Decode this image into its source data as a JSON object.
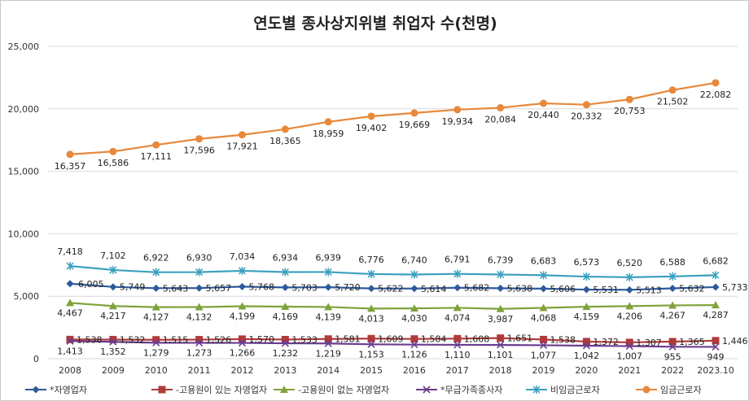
{
  "chart_data": {
    "type": "line",
    "title": "연도별 종사상지위별 취업자 수(천명)",
    "xlabel": "",
    "ylabel": "",
    "ylim": [
      0,
      25000
    ],
    "yticks": [
      "0",
      "5,000",
      "10,000",
      "15,000",
      "20,000",
      "25,000"
    ],
    "categories": [
      "2008",
      "2009",
      "2010",
      "2011",
      "2012",
      "2013",
      "2014",
      "2015",
      "2016",
      "2017",
      "2018",
      "2019",
      "2020",
      "2021",
      "2022",
      "2023.10"
    ],
    "grid": true,
    "legend_position": "bottom",
    "series": [
      {
        "name": "*자영업자",
        "color": "#2e5a9c",
        "marker": "diamond",
        "values": [
          6005,
          5749,
          5643,
          5657,
          5768,
          5703,
          5720,
          5622,
          5614,
          5682,
          5638,
          5606,
          5531,
          5513,
          5632,
          5733
        ],
        "labels": [
          "6,005",
          "5,749",
          "5,643",
          "5,657",
          "5,768",
          "5,703",
          "5,720",
          "5,622",
          "5,614",
          "5,682",
          "5,638",
          "5,606",
          "5,531",
          "5,513",
          "5,632",
          "5,733"
        ]
      },
      {
        "name": "-고용원이 있는 자영업자",
        "color": "#b03a3a",
        "marker": "square",
        "values": [
          1538,
          1532,
          1515,
          1526,
          1570,
          1533,
          1581,
          1609,
          1584,
          1608,
          1651,
          1538,
          1372,
          1307,
          1365,
          1446
        ],
        "labels": [
          "1,538",
          "1,532",
          "1,515",
          "1,526",
          "1,570",
          "1,533",
          "1,581",
          "1,609",
          "1,584",
          "1,608",
          "1,651",
          "1,538",
          "1,372",
          "1,307",
          "1,365",
          "1,446"
        ]
      },
      {
        "name": "-고용원이 없는 자영업자",
        "color": "#7fa33a",
        "marker": "triangle",
        "values": [
          4467,
          4217,
          4127,
          4132,
          4199,
          4169,
          4139,
          4013,
          4030,
          4074,
          3987,
          4068,
          4159,
          4206,
          4267,
          4287
        ],
        "labels": [
          "4,467",
          "4,217",
          "4,127",
          "4,132",
          "4,199",
          "4,169",
          "4,139",
          "4,013",
          "4,030",
          "4,074",
          "3,987",
          "4,068",
          "4,159",
          "4,206",
          "4,267",
          "4,287"
        ]
      },
      {
        "name": "*무급가족종사자",
        "color": "#6a3d8f",
        "marker": "x",
        "values": [
          1413,
          1352,
          1279,
          1273,
          1266,
          1232,
          1219,
          1153,
          1126,
          1110,
          1101,
          1077,
          1042,
          1007,
          955,
          949
        ],
        "labels": [
          "1,413",
          "1,352",
          "1,279",
          "1,273",
          "1,266",
          "1,232",
          "1,219",
          "1,153",
          "1,126",
          "1,110",
          "1,101",
          "1,077",
          "1,042",
          "1,007",
          "955",
          "949"
        ]
      },
      {
        "name": "비임금근로자",
        "color": "#3aa0bf",
        "marker": "star",
        "values": [
          7418,
          7102,
          6922,
          6930,
          7034,
          6934,
          6939,
          6776,
          6740,
          6791,
          6739,
          6683,
          6573,
          6520,
          6588,
          6682
        ],
        "labels": [
          "7,418",
          "7,102",
          "6,922",
          "6,930",
          "7,034",
          "6,934",
          "6,939",
          "6,776",
          "6,740",
          "6,791",
          "6,739",
          "6,683",
          "6,573",
          "6,520",
          "6,588",
          "6,682"
        ]
      },
      {
        "name": "임금근로자",
        "color": "#e8883a",
        "marker": "circle",
        "values": [
          16357,
          16586,
          17111,
          17596,
          17921,
          18365,
          18959,
          19402,
          19669,
          19934,
          20084,
          20440,
          20332,
          20753,
          21502,
          22082
        ],
        "labels": [
          "16,357",
          "16,586",
          "17,111",
          "17,596",
          "17,921",
          "18,365",
          "18,959",
          "19,402",
          "19,669",
          "19,934",
          "20,084",
          "20,440",
          "20,332",
          "20,753",
          "21,502",
          "22,082"
        ]
      }
    ]
  }
}
